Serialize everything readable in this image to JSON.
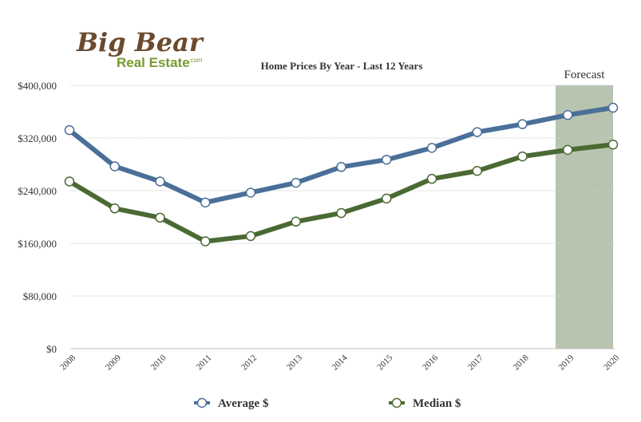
{
  "logo": {
    "main": "Big Bear",
    "sub": "Real Estate",
    "suffix": ".com"
  },
  "chart_data": {
    "type": "line",
    "title": "Home Prices By Year - Last 12 Years",
    "categories": [
      "2008",
      "2009",
      "2010",
      "2011",
      "2012",
      "2013",
      "2014",
      "2015",
      "2016",
      "2017",
      "2018",
      "2019",
      "2020"
    ],
    "ylim": [
      0,
      400000
    ],
    "yticks": [
      0,
      80000,
      160000,
      240000,
      320000,
      400000
    ],
    "ytick_labels": [
      "$0",
      "$80,000",
      "$160,000",
      "$240,000",
      "$320,000",
      "$400,000"
    ],
    "grid": true,
    "legend_position": "bottom",
    "forecast": {
      "label": "Forecast",
      "from": "2019",
      "to": "2020",
      "color": "#b8c4b0"
    },
    "series": [
      {
        "name": "Average $",
        "color": "#4a6f98",
        "values": [
          332000,
          277000,
          254000,
          222000,
          237000,
          252000,
          276000,
          287000,
          305000,
          329000,
          341000,
          355000,
          366000
        ]
      },
      {
        "name": "Median $",
        "color": "#4b6a33",
        "values": [
          254000,
          213000,
          199000,
          163000,
          171000,
          193000,
          206000,
          228000,
          258000,
          270000,
          292000,
          302000,
          310000
        ]
      }
    ]
  }
}
